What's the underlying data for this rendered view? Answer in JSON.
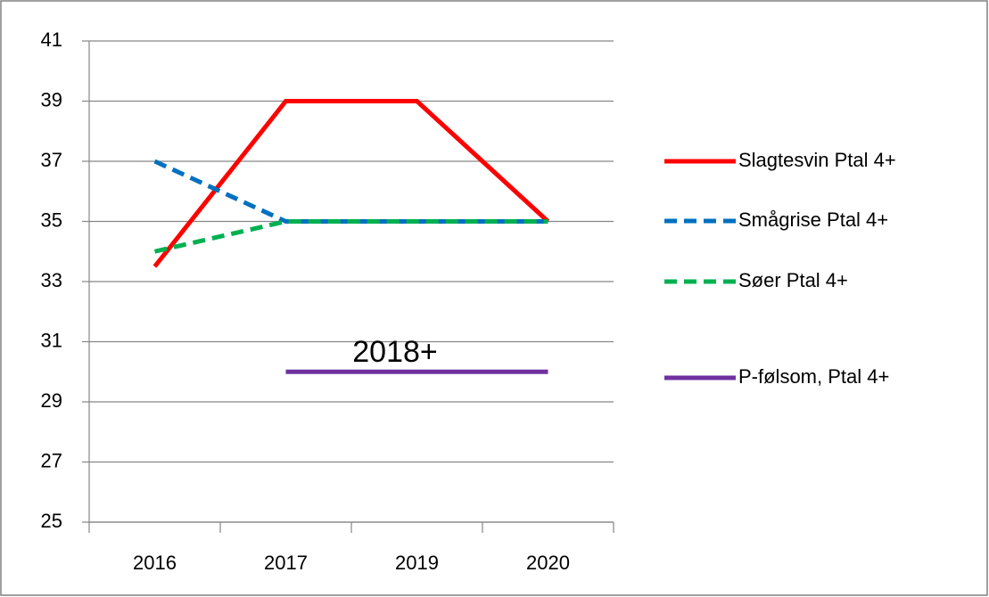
{
  "chart_data": {
    "type": "line",
    "categories": [
      "2016",
      "2017",
      "2019",
      "2020"
    ],
    "series": [
      {
        "name": "Slagtesvin Ptal 4+",
        "color": "#ff0000",
        "dashed": false,
        "values": [
          33.5,
          39,
          39,
          35
        ]
      },
      {
        "name": "Smågrise Ptal 4+",
        "color": "#0070c0",
        "dashed": true,
        "values": [
          37,
          35,
          35,
          35
        ]
      },
      {
        "name": "Søer Ptal 4+",
        "color": "#00b050",
        "dashed": true,
        "values": [
          34,
          35,
          35,
          35
        ]
      },
      {
        "name": "P-følsom, Ptal 4+",
        "color": "#7030a0",
        "dashed": false,
        "values": [
          null,
          30,
          30,
          30
        ]
      }
    ],
    "annotations": [
      "2018+"
    ],
    "ylim": [
      25,
      41
    ],
    "yticks": [
      25,
      27,
      29,
      31,
      33,
      35,
      37,
      39,
      41
    ],
    "grid": true,
    "legend": "right"
  }
}
